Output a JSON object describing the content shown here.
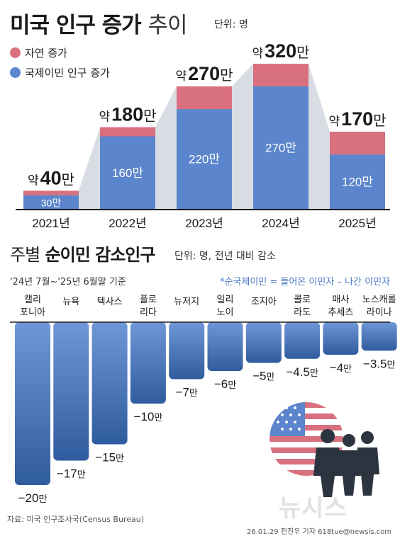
{
  "header": {
    "title_bold": "미국 인구 증가",
    "title_light": "추이",
    "unit": "단위: 명"
  },
  "legend": [
    {
      "label": "자연 증가",
      "color": "#d9707f"
    },
    {
      "label": "국제이민 인구 증가",
      "color": "#5b85cc"
    }
  ],
  "chart_data": [
    {
      "type": "bar",
      "stacked": true,
      "categories": [
        "2021년",
        "2022년",
        "2023년",
        "2024년",
        "2025년"
      ],
      "series": [
        {
          "name": "국제이민 인구 증가",
          "values": [
            30,
            160,
            220,
            270,
            120
          ],
          "labels": [
            "30만",
            "160만",
            "220만",
            "270만",
            "120만"
          ],
          "color": "#5b85cc"
        },
        {
          "name": "자연 증가",
          "values": [
            10,
            20,
            50,
            50,
            50
          ],
          "color": "#d9707f"
        }
      ],
      "totals": [
        40,
        180,
        270,
        320,
        170
      ],
      "total_labels": [
        {
          "prefix": "약",
          "number": "40",
          "suffix": "만"
        },
        {
          "prefix": "약",
          "number": "180",
          "suffix": "만"
        },
        {
          "prefix": "약",
          "number": "270",
          "suffix": "만"
        },
        {
          "prefix": "약",
          "number": "320",
          "suffix": "만"
        },
        {
          "prefix": "약",
          "number": "170",
          "suffix": "만"
        }
      ],
      "ylim": [
        0,
        320
      ],
      "unit": "만 명"
    },
    {
      "type": "bar",
      "orientation": "vertical-negative",
      "categories": [
        [
          "캘리",
          "포니아"
        ],
        [
          "뉴욕"
        ],
        [
          "텍사스"
        ],
        [
          "플로",
          "리다"
        ],
        [
          "뉴저지"
        ],
        [
          "일리",
          "노이"
        ],
        [
          "조지아"
        ],
        [
          "콜로",
          "라도"
        ],
        [
          "매사",
          "추세츠"
        ],
        [
          "노스캐롤",
          "라이나"
        ]
      ],
      "values": [
        -20,
        -17,
        -15,
        -10,
        -7,
        -6,
        -5,
        -4.5,
        -4,
        -3.5
      ],
      "value_labels": [
        {
          "num": "−20",
          "suffix": "만"
        },
        {
          "num": "−17",
          "suffix": "만"
        },
        {
          "num": "−15",
          "suffix": "만"
        },
        {
          "num": "−10",
          "suffix": "만"
        },
        {
          "num": "−7",
          "suffix": "만"
        },
        {
          "num": "−6",
          "suffix": "만"
        },
        {
          "num": "−5",
          "suffix": "만"
        },
        {
          "num": "−4.5",
          "suffix": "만"
        },
        {
          "num": "−4",
          "suffix": "만"
        },
        {
          "num": "−3.5",
          "suffix": "만"
        }
      ],
      "ylim": [
        -20,
        0
      ],
      "color": "#5b85cc"
    }
  ],
  "section2": {
    "title_light": "주별",
    "title_bold": "순이민 감소인구",
    "unit": "단위: 명, 전년 대비 감소",
    "period": "'24년 7월~'25년 6월말 기준",
    "note": "*순국제이민 = 들어온 이민자 – 나간 이민자"
  },
  "footer": {
    "source": "자료: 미국 인구조사국(Census Bureau)",
    "credit": "26.01.29 전진우 기자 618tue@newsis.com",
    "watermark": "뉴시스"
  }
}
